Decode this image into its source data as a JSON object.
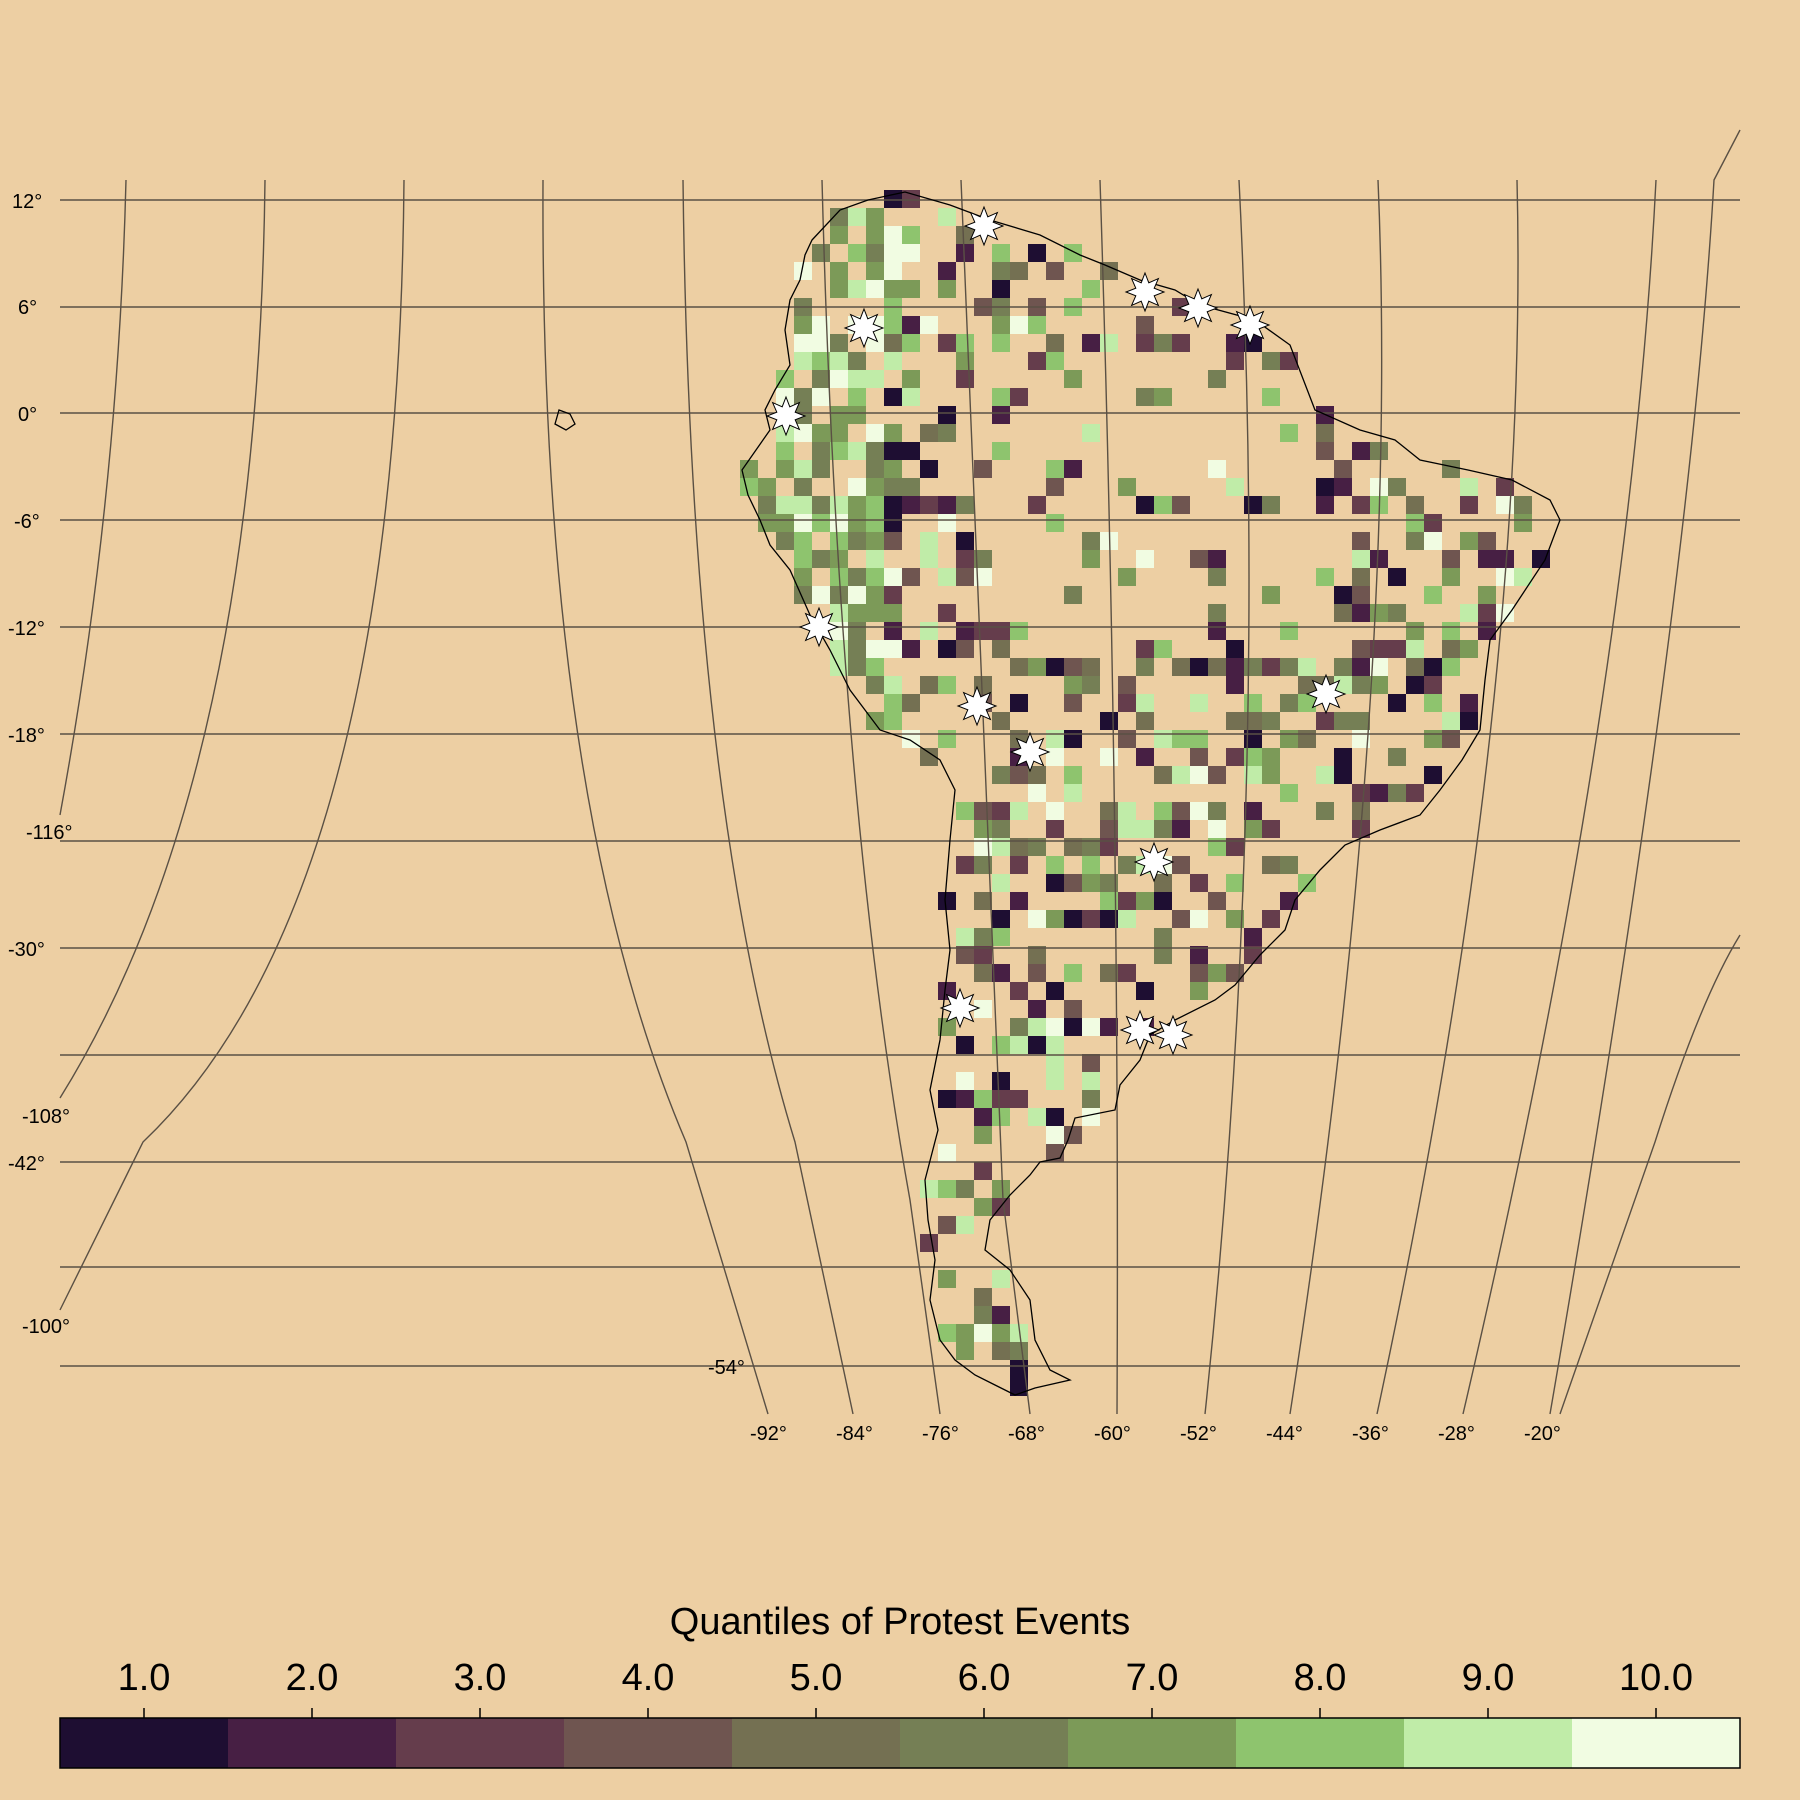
{
  "map": {
    "lat_labels": [
      "12°",
      "6°",
      "0°",
      "-6°",
      "-12°",
      "-18°",
      "-30°",
      "-42°",
      "-54°"
    ],
    "lon_labels_bottom": [
      "-92°",
      "-84°",
      "-76°",
      "-68°",
      "-60°",
      "-52°",
      "-44°",
      "-36°",
      "-28°",
      "-20°"
    ],
    "lon_labels_left": [
      "-116°",
      "-108°",
      "-100°"
    ],
    "colors": {
      "background": "#EDCFA3",
      "grid": "#5a5044",
      "coastline": "#000000",
      "marker_fill": "#FFFFFF"
    },
    "marker_icon": "star-icon",
    "marker_count": 14
  },
  "legend": {
    "title": "Quantiles of Protest Events",
    "ticks": [
      "1.0",
      "2.0",
      "3.0",
      "4.0",
      "5.0",
      "6.0",
      "7.0",
      "8.0",
      "9.0",
      "10.0"
    ],
    "colors": [
      "#1E0E32",
      "#471F44",
      "#653D4C",
      "#6F5550",
      "#747052",
      "#757F55",
      "#7C9A58",
      "#8EC46E",
      "#C0ECA8",
      "#F1FCE2"
    ]
  }
}
